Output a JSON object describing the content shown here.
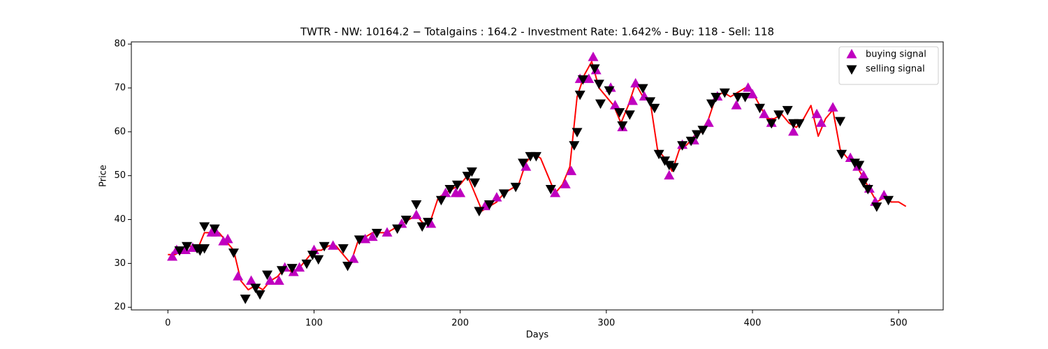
{
  "chart_data": {
    "type": "line",
    "title": "TWTR - NW: 10164.2 − Totalgains : 164.2 - Investment Rate: 1.642% - Buy: 118 - Sell: 118",
    "x_label": "Days",
    "y_label": "Price",
    "xlim": [
      -25,
      530.5
    ],
    "ylim": [
      19.4,
      80.5
    ],
    "xticks": [
      0,
      100,
      200,
      300,
      400,
      500
    ],
    "yticks": [
      20,
      30,
      40,
      50,
      60,
      70,
      80
    ],
    "legend": "upper right",
    "series": [
      {
        "color": "#ff0000",
        "x": [
          0,
          5,
          10,
          15,
          20,
          25,
          30,
          35,
          40,
          45,
          50,
          55,
          60,
          65,
          70,
          75,
          80,
          85,
          90,
          95,
          100,
          105,
          110,
          115,
          120,
          125,
          130,
          135,
          140,
          145,
          150,
          155,
          160,
          165,
          170,
          175,
          180,
          185,
          190,
          195,
          200,
          205,
          210,
          215,
          220,
          225,
          230,
          235,
          240,
          245,
          250,
          255,
          260,
          265,
          270,
          275,
          280,
          285,
          290,
          295,
          300,
          305,
          310,
          315,
          320,
          325,
          330,
          335,
          340,
          345,
          350,
          355,
          360,
          365,
          370,
          375,
          380,
          385,
          390,
          395,
          400,
          405,
          410,
          415,
          420,
          425,
          430,
          435,
          440,
          445,
          450,
          455,
          460,
          465,
          470,
          475,
          480,
          485,
          490,
          495,
          500,
          505
        ],
        "values": [
          32,
          32,
          33,
          34,
          33,
          37,
          37,
          37,
          35,
          33,
          26,
          24,
          25,
          24,
          26,
          27,
          29,
          28,
          29,
          31,
          33,
          33,
          34,
          34,
          32,
          30,
          35,
          36,
          37,
          37,
          37,
          38,
          39,
          40,
          41,
          39,
          40,
          45,
          46,
          47,
          48,
          50,
          46,
          42,
          43,
          44,
          46,
          47,
          48,
          53,
          55,
          54,
          50,
          46,
          48,
          52,
          68,
          73,
          76,
          70,
          68,
          66,
          62,
          66,
          71,
          68,
          67,
          56,
          54,
          51,
          56,
          57,
          59,
          60,
          63,
          68,
          69,
          68,
          69,
          70,
          69,
          66,
          63,
          63,
          64,
          62,
          61,
          63,
          66,
          59,
          63,
          65,
          56,
          54,
          53,
          50,
          47,
          44,
          45,
          44,
          44,
          43
        ]
      },
      {
        "name": "buying signal",
        "color": "#bf00bf",
        "marker": "triangle-up",
        "x": [
          3,
          6,
          12,
          17,
          30,
          33,
          38,
          41,
          48,
          57,
          70,
          76,
          80,
          86,
          90,
          100,
          113,
          127,
          135,
          140,
          150,
          160,
          170,
          180,
          190,
          197,
          200,
          217,
          225,
          245,
          265,
          272,
          276,
          282,
          288,
          291,
          293,
          303,
          306,
          311,
          318,
          320,
          326,
          343,
          352,
          360,
          370,
          376,
          389,
          397,
          400,
          408,
          413,
          428,
          444,
          447,
          455,
          467,
          472,
          476,
          480,
          484,
          490
        ],
        "values": [
          31.5,
          33,
          33,
          33.5,
          37,
          37,
          35,
          35.5,
          27,
          26,
          26,
          26,
          29,
          28,
          29,
          33,
          34,
          31,
          35.5,
          36,
          37,
          39,
          41,
          39,
          46,
          46,
          46,
          43,
          45,
          52,
          46,
          48,
          51,
          72,
          72,
          77,
          74,
          70,
          66,
          61,
          67,
          71,
          68,
          50,
          57,
          58,
          62,
          68,
          66,
          70,
          68.5,
          64,
          62,
          60,
          64,
          62,
          65.5,
          54,
          52,
          50,
          47,
          44,
          45.5
        ]
      },
      {
        "name": "selling signal",
        "color": "#000000",
        "marker": "triangle-down",
        "x": [
          8,
          13,
          20,
          22,
          25,
          25,
          32,
          45,
          53,
          60,
          63,
          68,
          78,
          85,
          95,
          99,
          103,
          107,
          120,
          123,
          131,
          143,
          157,
          163,
          170,
          174,
          178,
          187,
          193,
          198,
          205,
          208,
          210,
          213,
          220,
          230,
          238,
          243,
          248,
          252,
          262,
          278,
          280,
          282,
          284,
          292,
          295,
          296,
          302,
          309,
          311,
          316,
          325,
          330,
          333,
          336,
          340,
          343,
          346,
          352,
          358,
          362,
          366,
          372,
          375,
          381,
          390,
          395,
          405,
          413,
          418,
          424,
          428,
          432,
          460,
          461,
          470,
          473,
          476,
          479,
          485,
          493
        ],
        "values": [
          33,
          34,
          33.5,
          33,
          33.5,
          38.5,
          38,
          32.5,
          22,
          24.5,
          23,
          27.5,
          28.5,
          29,
          30,
          32,
          31,
          34,
          33.5,
          29.5,
          35.5,
          37,
          38,
          40,
          43.5,
          38.5,
          39.5,
          44.5,
          47,
          48,
          50,
          51,
          48.5,
          42,
          43.5,
          46,
          47.5,
          53,
          54.5,
          54.5,
          47,
          57,
          60,
          68.5,
          72,
          74.5,
          71,
          66.5,
          69.5,
          64.5,
          61.5,
          64,
          70,
          67,
          65.5,
          55,
          53.5,
          52.5,
          52,
          57,
          58,
          59.5,
          60.5,
          66.5,
          68,
          69,
          68,
          68,
          65.5,
          62,
          64,
          65,
          62,
          62,
          62.5,
          55,
          53,
          52.5,
          48.5,
          47,
          43,
          44.5
        ]
      }
    ]
  }
}
